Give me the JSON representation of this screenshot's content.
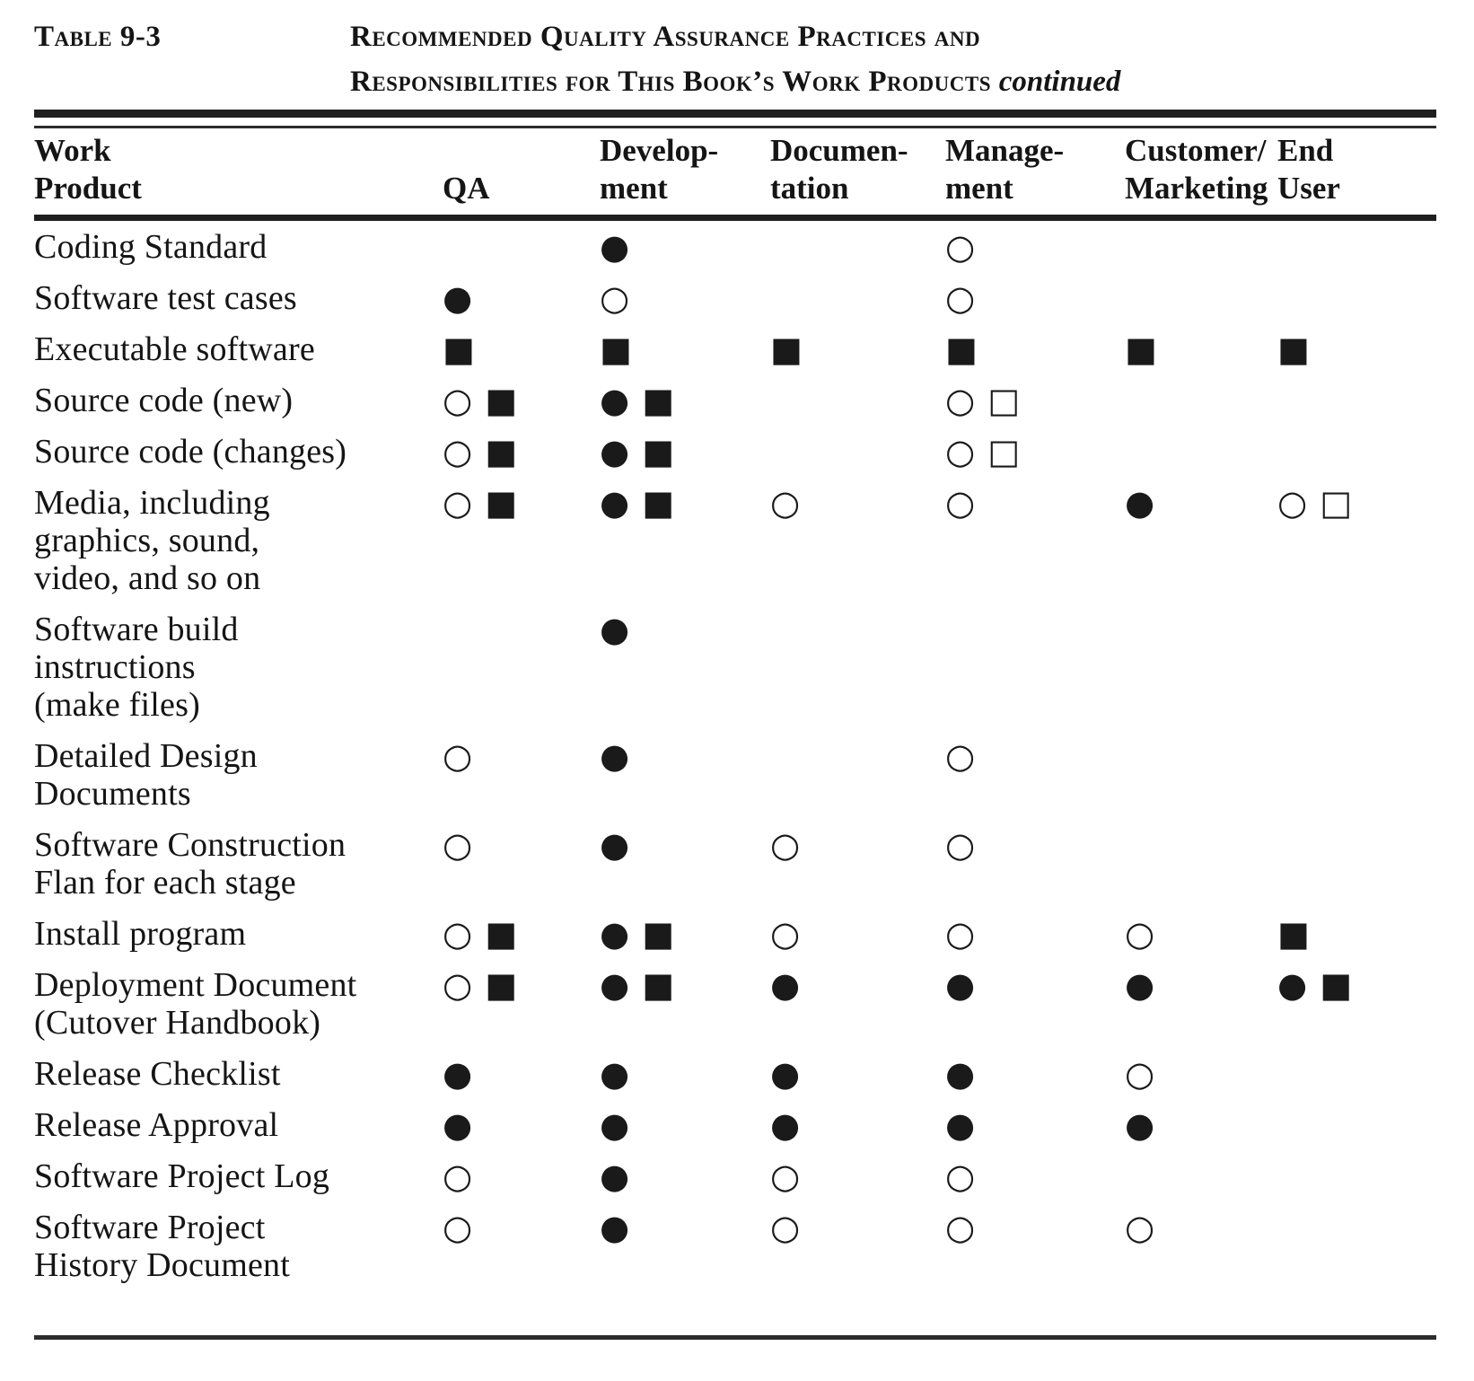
{
  "header": {
    "table_label": "Table 9-3",
    "title_line1": "Recommended Quality Assurance Practices and",
    "title_line2": "Responsibilities for This Book’s Work Products",
    "continued": "continued"
  },
  "symbol_glyphs": {
    "filled_circle": "●",
    "open_circle": "○",
    "filled_square": "■",
    "open_square": "□"
  },
  "table": {
    "columns": [
      {
        "label": "Work\nProduct"
      },
      {
        "label": "QA"
      },
      {
        "label": "Develop-\nment"
      },
      {
        "label": "Documen-\ntation"
      },
      {
        "label": "Manage-\nment"
      },
      {
        "label": "Customer/\nMarketing"
      },
      {
        "label": "End\nUser"
      }
    ],
    "rows": [
      {
        "product": "Coding Standard",
        "cells": [
          "",
          "●",
          "",
          "○",
          "",
          ""
        ]
      },
      {
        "product": "Software test cases",
        "cells": [
          "●",
          "○",
          "",
          "○",
          "",
          ""
        ]
      },
      {
        "product": "Executable software",
        "cells": [
          "■",
          "■",
          "■",
          "■",
          "■",
          "■"
        ]
      },
      {
        "product": "Source code (new)",
        "cells": [
          "○ ■",
          "● ■",
          "",
          "○ □",
          "",
          ""
        ]
      },
      {
        "product": "Source code (changes)",
        "cells": [
          "○ ■",
          "● ■",
          "",
          "○ □",
          "",
          ""
        ]
      },
      {
        "product": "Media, including\ngraphics, sound,\nvideo, and so on",
        "cells": [
          "○ ■",
          "● ■",
          "○",
          "○",
          "●",
          "○ □"
        ]
      },
      {
        "product": "Software build\ninstructions\n(make files)",
        "cells": [
          "",
          "●",
          "",
          "",
          "",
          ""
        ]
      },
      {
        "product": "Detailed Design\nDocuments",
        "cells": [
          "○",
          "●",
          "",
          "○",
          "",
          ""
        ]
      },
      {
        "product": "Software Construction\nFlan for each stage",
        "cells": [
          "○",
          "●",
          "○",
          "○",
          "",
          ""
        ]
      },
      {
        "product": "Install program",
        "cells": [
          "○ ■",
          "● ■",
          "○",
          "○",
          "○",
          "■"
        ]
      },
      {
        "product": "Deployment Document\n(Cutover Handbook)",
        "cells": [
          "○ ■",
          "● ■",
          "●",
          "●",
          "●",
          "● ■"
        ]
      },
      {
        "product": "Release Checklist",
        "cells": [
          "●",
          "●",
          "●",
          "●",
          "○",
          ""
        ]
      },
      {
        "product": "Release Approval",
        "cells": [
          "●",
          "●",
          "●",
          "●",
          "●",
          ""
        ]
      },
      {
        "product": "Software Project Log",
        "cells": [
          "○",
          "●",
          "○",
          "○",
          "",
          ""
        ]
      },
      {
        "product": "Software Project\nHistory Document",
        "cells": [
          "○",
          "●",
          "○",
          "○",
          "○",
          ""
        ]
      }
    ]
  }
}
